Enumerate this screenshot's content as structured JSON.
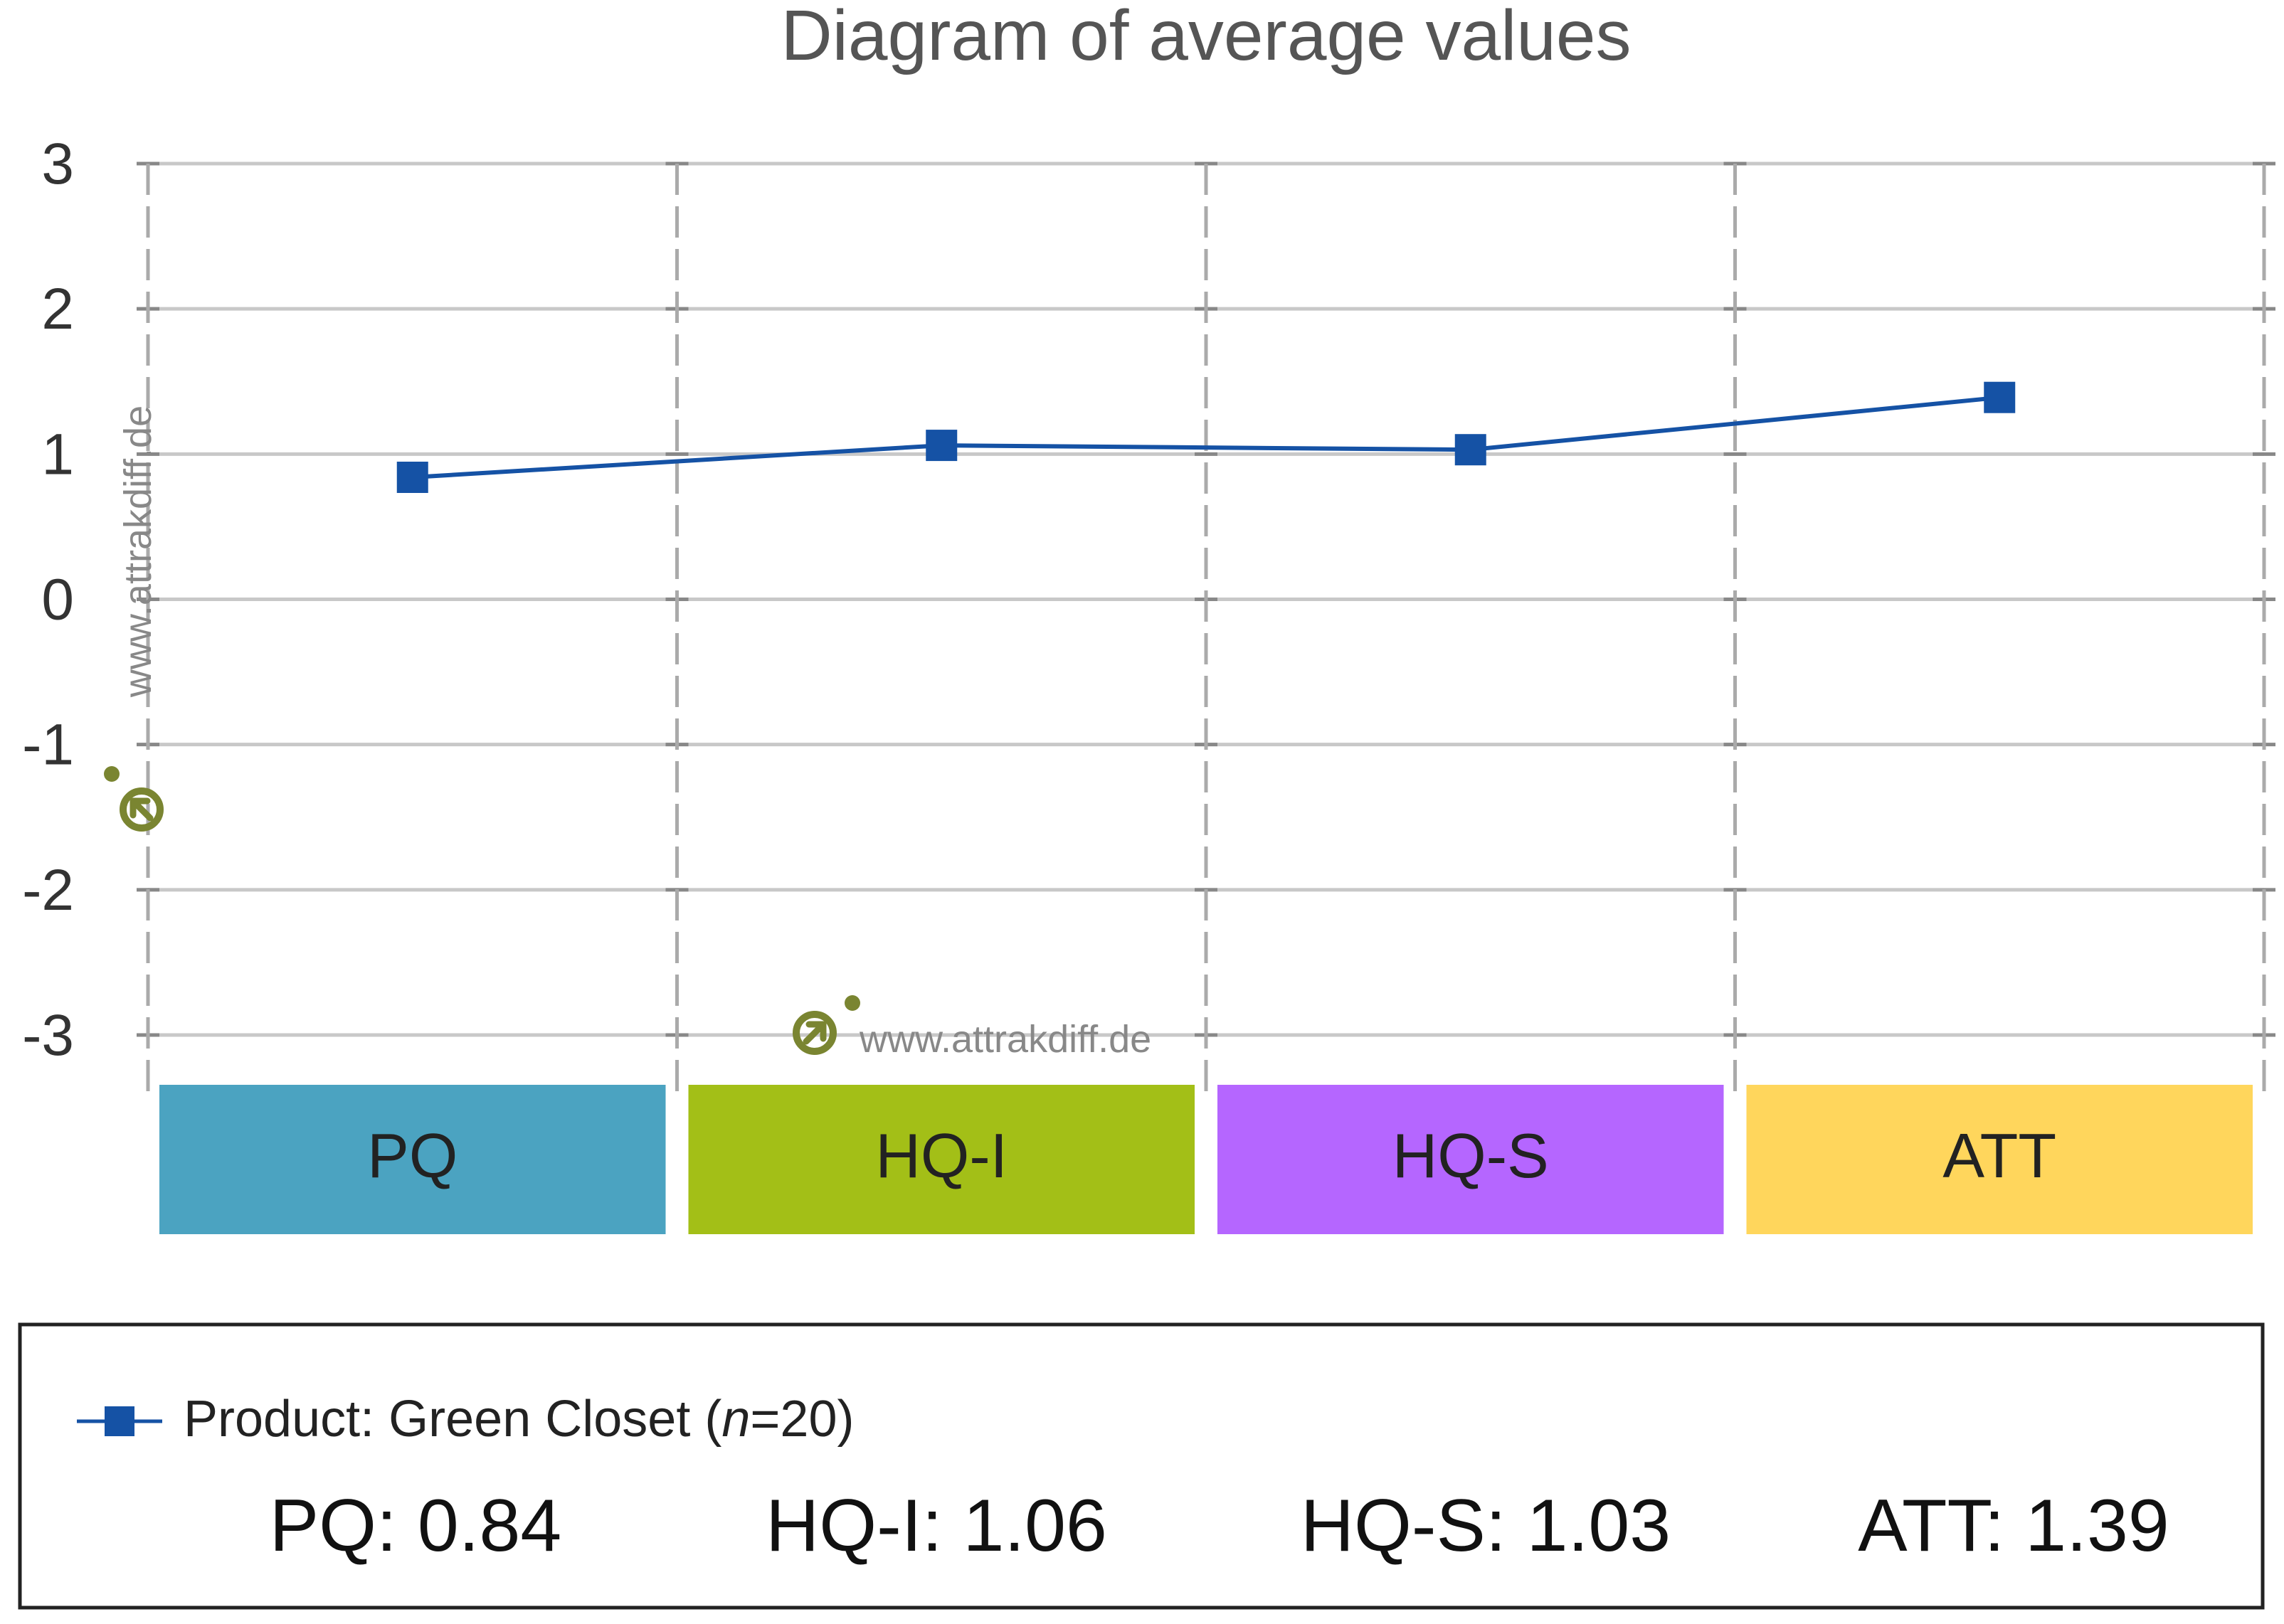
{
  "chart_data": {
    "type": "line",
    "title": "Diagram of average values",
    "xlabel": "",
    "ylabel": "",
    "ylim": [
      -3,
      3
    ],
    "yticks": [
      "3",
      "2",
      "1",
      "0",
      "-1",
      "-2",
      "-3"
    ],
    "categories": [
      "PQ",
      "HQ-I",
      "HQ-S",
      "ATT"
    ],
    "category_colors": [
      "#4ba3c1",
      "#a3bf17",
      "#b566ff",
      "#ffd65c"
    ],
    "series": [
      {
        "name": "Product: Green Closet",
        "n_label": "n",
        "n_value": "20",
        "values": [
          0.84,
          1.06,
          1.03,
          1.39
        ],
        "color": "#1552a5"
      }
    ],
    "summary": [
      {
        "label": "PQ:",
        "value": "0.84"
      },
      {
        "label": "HQ-I:",
        "value": "1.06"
      },
      {
        "label": "HQ-S:",
        "value": "1.03"
      },
      {
        "label": "ATT:",
        "value": "1.39"
      }
    ],
    "grid": true,
    "legend_position": "bottom",
    "watermark_text": "www.attrakdiff.de",
    "watermark_color": "#7a8531"
  }
}
